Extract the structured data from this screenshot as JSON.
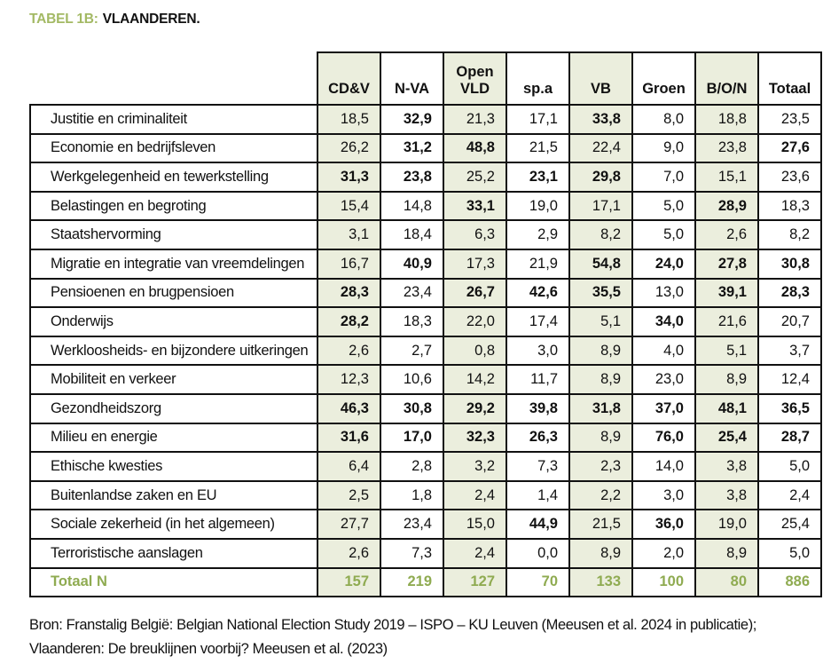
{
  "title": {
    "prefix": "TABEL 1B:",
    "name": "VLAANDEREN."
  },
  "colors": {
    "accent_green_title": "#a3b964",
    "accent_green_totals": "#8fab51",
    "shaded_column_bg": "#ebeedd",
    "border": "#111111"
  },
  "table": {
    "columns": [
      {
        "label": "CD&V",
        "shaded": true
      },
      {
        "label": "N-VA",
        "shaded": false
      },
      {
        "label": "Open VLD",
        "shaded": true
      },
      {
        "label": "sp.a",
        "shaded": false
      },
      {
        "label": "VB",
        "shaded": true
      },
      {
        "label": "Groen",
        "shaded": false
      },
      {
        "label": "B/O/N",
        "shaded": true
      },
      {
        "label": "Totaal",
        "shaded": false
      }
    ],
    "rows": [
      {
        "label": "Justitie en criminaliteit",
        "values": [
          "18,5",
          "32,9",
          "21,3",
          "17,1",
          "33,8",
          "8,0",
          "18,8",
          "23,5"
        ],
        "bold": [
          0,
          1,
          0,
          0,
          1,
          0,
          0,
          0
        ]
      },
      {
        "label": "Economie en bedrijfsleven",
        "values": [
          "26,2",
          "31,2",
          "48,8",
          "21,5",
          "22,4",
          "9,0",
          "23,8",
          "27,6"
        ],
        "bold": [
          0,
          1,
          1,
          0,
          0,
          0,
          0,
          1
        ]
      },
      {
        "label": "Werkgelegenheid en tewerkstelling",
        "values": [
          "31,3",
          "23,8",
          "25,2",
          "23,1",
          "29,8",
          "7,0",
          "15,1",
          "23,6"
        ],
        "bold": [
          1,
          1,
          0,
          1,
          1,
          0,
          0,
          0
        ]
      },
      {
        "label": "Belastingen en begroting",
        "values": [
          "15,4",
          "14,8",
          "33,1",
          "19,0",
          "17,1",
          "5,0",
          "28,9",
          "18,3"
        ],
        "bold": [
          0,
          0,
          1,
          0,
          0,
          0,
          1,
          0
        ]
      },
      {
        "label": "Staatshervorming",
        "values": [
          "3,1",
          "18,4",
          "6,3",
          "2,9",
          "8,2",
          "5,0",
          "2,6",
          "8,2"
        ],
        "bold": [
          0,
          0,
          0,
          0,
          0,
          0,
          0,
          0
        ]
      },
      {
        "label": "Migratie en integratie van vreemdelingen",
        "values": [
          "16,7",
          "40,9",
          "17,3",
          "21,9",
          "54,8",
          "24,0",
          "27,8",
          "30,8"
        ],
        "bold": [
          0,
          1,
          0,
          0,
          1,
          1,
          1,
          1
        ]
      },
      {
        "label": "Pensioenen en brugpensioen",
        "values": [
          "28,3",
          "23,4",
          "26,7",
          "42,6",
          "35,5",
          "13,0",
          "39,1",
          "28,3"
        ],
        "bold": [
          1,
          0,
          1,
          1,
          1,
          0,
          1,
          1
        ]
      },
      {
        "label": "Onderwijs",
        "values": [
          "28,2",
          "18,3",
          "22,0",
          "17,4",
          "5,1",
          "34,0",
          "21,6",
          "20,7"
        ],
        "bold": [
          1,
          0,
          0,
          0,
          0,
          1,
          0,
          0
        ]
      },
      {
        "label": "Werkloosheids- en bijzondere uitkeringen",
        "values": [
          "2,6",
          "2,7",
          "0,8",
          "3,0",
          "8,9",
          "4,0",
          "5,1",
          "3,7"
        ],
        "bold": [
          0,
          0,
          0,
          0,
          0,
          0,
          0,
          0
        ]
      },
      {
        "label": "Mobiliteit en verkeer",
        "values": [
          "12,3",
          "10,6",
          "14,2",
          "11,7",
          "8,9",
          "23,0",
          "8,9",
          "12,4"
        ],
        "bold": [
          0,
          0,
          0,
          0,
          0,
          0,
          0,
          0
        ]
      },
      {
        "label": "Gezondheidszorg",
        "values": [
          "46,3",
          "30,8",
          "29,2",
          "39,8",
          "31,8",
          "37,0",
          "48,1",
          "36,5"
        ],
        "bold": [
          1,
          1,
          1,
          1,
          1,
          1,
          1,
          1
        ]
      },
      {
        "label": "Milieu en energie",
        "values": [
          "31,6",
          "17,0",
          "32,3",
          "26,3",
          "8,9",
          "76,0",
          "25,4",
          "28,7"
        ],
        "bold": [
          1,
          1,
          1,
          1,
          0,
          1,
          1,
          1
        ]
      },
      {
        "label": "Ethische kwesties",
        "values": [
          "6,4",
          "2,8",
          "3,2",
          "7,3",
          "2,3",
          "14,0",
          "3,8",
          "5,0"
        ],
        "bold": [
          0,
          0,
          0,
          0,
          0,
          0,
          0,
          0
        ]
      },
      {
        "label": "Buitenlandse zaken en EU",
        "values": [
          "2,5",
          "1,8",
          "2,4",
          "1,4",
          "2,2",
          "3,0",
          "3,8",
          "2,4"
        ],
        "bold": [
          0,
          0,
          0,
          0,
          0,
          0,
          0,
          0
        ]
      },
      {
        "label": "Sociale zekerheid (in het algemeen)",
        "values": [
          "27,7",
          "23,4",
          "15,0",
          "44,9",
          "21,5",
          "36,0",
          "19,0",
          "25,4"
        ],
        "bold": [
          0,
          0,
          0,
          1,
          0,
          1,
          0,
          0
        ]
      },
      {
        "label": "Terroristische aanslagen",
        "values": [
          "2,6",
          "7,3",
          "2,4",
          "0,0",
          "8,9",
          "2,0",
          "8,9",
          "5,0"
        ],
        "bold": [
          0,
          0,
          0,
          0,
          0,
          0,
          0,
          0
        ]
      }
    ],
    "total_row": {
      "label": "Totaal N",
      "values": [
        "157",
        "219",
        "127",
        "70",
        "133",
        "100",
        "80",
        "886"
      ]
    }
  },
  "footer": {
    "line1": "Bron: Franstalig België: Belgian National Election Study 2019 – ISPO – KU Leuven (Meeusen et al. 2024 in publicatie);",
    "line2": "Vlaanderen: De breuklijnen voorbij? Meeusen et al. (2023)"
  }
}
